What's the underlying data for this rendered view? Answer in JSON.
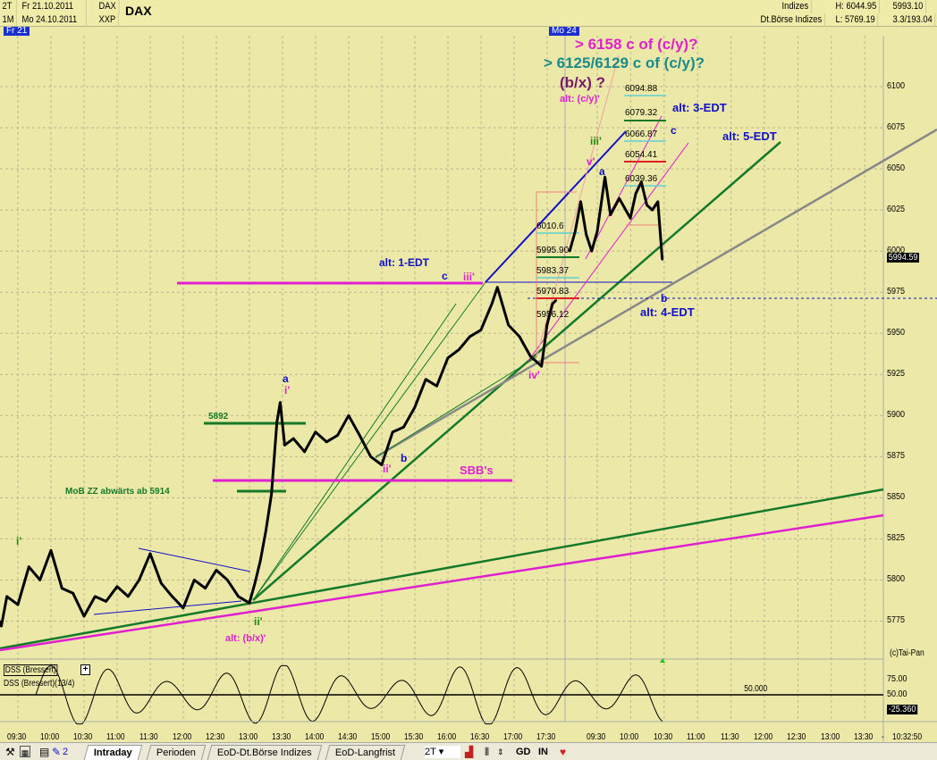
{
  "header": {
    "period1": "2T",
    "date1": "Fr 21.10.2011",
    "sym1": "DAX",
    "title": "DAX",
    "period2": "1M",
    "date2": "Mo 24.10.2011",
    "sym2": "XXP",
    "category": "Indizes",
    "exchange": "Dt.Börse Indizes",
    "high": "H: 6044.95",
    "low": "L: 5769.19",
    "last": "5993.10",
    "ratio": "3.3/193.04"
  },
  "day_tags": [
    "Fr 21",
    "Mo 24"
  ],
  "chart_data": {
    "type": "line",
    "title": "DAX",
    "price_axis": {
      "ticks": [
        6100,
        6075,
        6050,
        6025,
        6000,
        5975,
        5950,
        5925,
        5900,
        5875,
        5850,
        5825,
        5800,
        5775
      ],
      "current": "5994.59"
    },
    "time_ticks": [
      "09:30",
      "10:00",
      "10:30",
      "11:00",
      "11:30",
      "12:00",
      "12:30",
      "13:00",
      "13:30",
      "14:00",
      "14:30",
      "15:00",
      "15:30",
      "16:00",
      "16:30",
      "17:00",
      "17:30",
      "09:30",
      "10:00",
      "10:30",
      "11:00",
      "11:30",
      "12:00",
      "12:30",
      "13:00",
      "13:30",
      "-",
      "10:32:50"
    ],
    "series": [
      {
        "points": [
          [
            "1 09:05",
            5800
          ],
          [
            "1 09:10",
            5780
          ],
          [
            "1 09:15",
            5772
          ],
          [
            "1 09:20",
            5790
          ],
          [
            "1 09:30",
            5785
          ],
          [
            "1 09:40",
            5808
          ],
          [
            "1 09:50",
            5800
          ],
          [
            "1 10:00",
            5818
          ],
          [
            "1 10:10",
            5795
          ],
          [
            "1 10:20",
            5792
          ],
          [
            "1 10:30",
            5778
          ],
          [
            "1 10:40",
            5790
          ],
          [
            "1 10:50",
            5787
          ],
          [
            "1 11:00",
            5796
          ],
          [
            "1 11:10",
            5790
          ],
          [
            "1 11:20",
            5800
          ],
          [
            "1 11:30",
            5816
          ],
          [
            "1 11:40",
            5798
          ],
          [
            "1 11:50",
            5790
          ],
          [
            "1 12:00",
            5783
          ],
          [
            "1 12:10",
            5800
          ],
          [
            "1 12:20",
            5795
          ],
          [
            "1 12:30",
            5806
          ],
          [
            "1 12:40",
            5800
          ],
          [
            "1 12:50",
            5790
          ],
          [
            "1 13:00",
            5786
          ],
          [
            "1 13:05",
            5798
          ],
          [
            "1 13:10",
            5812
          ],
          [
            "1 13:15",
            5830
          ],
          [
            "1 13:20",
            5852
          ],
          [
            "1 13:25",
            5896
          ],
          [
            "1 13:28",
            5908
          ],
          [
            "1 13:32",
            5882
          ],
          [
            "1 13:40",
            5886
          ],
          [
            "1 13:50",
            5878
          ],
          [
            "1 14:00",
            5890
          ],
          [
            "1 14:10",
            5884
          ],
          [
            "1 14:20",
            5888
          ],
          [
            "1 14:30",
            5900
          ],
          [
            "1 14:40",
            5888
          ],
          [
            "1 14:50",
            5875
          ],
          [
            "1 15:00",
            5870
          ],
          [
            "1 15:10",
            5890
          ],
          [
            "1 15:20",
            5893
          ],
          [
            "1 15:30",
            5905
          ],
          [
            "1 15:40",
            5922
          ],
          [
            "1 15:50",
            5918
          ],
          [
            "1 16:00",
            5935
          ],
          [
            "1 16:10",
            5940
          ],
          [
            "1 16:20",
            5948
          ],
          [
            "1 16:30",
            5952
          ],
          [
            "1 16:40",
            5968
          ],
          [
            "1 16:45",
            5978
          ],
          [
            "1 16:55",
            5955
          ],
          [
            "1 17:05",
            5948
          ],
          [
            "1 17:15",
            5936
          ],
          [
            "1 17:25",
            5930
          ],
          [
            "1 17:30",
            5955
          ],
          [
            "1 17:35",
            5968
          ],
          [
            "1 17:38",
            5970
          ],
          [
            "2 09:05",
            6000
          ],
          [
            "2 09:10",
            6012
          ],
          [
            "2 09:15",
            6030
          ],
          [
            "2 09:20",
            6010
          ],
          [
            "2 09:25",
            6000
          ],
          [
            "2 09:30",
            6012
          ],
          [
            "2 09:37",
            6045
          ],
          [
            "2 09:42",
            6022
          ],
          [
            "2 09:50",
            6032
          ],
          [
            "2 10:00",
            6020
          ],
          [
            "2 10:05",
            6035
          ],
          [
            "2 10:10",
            6042
          ],
          [
            "2 10:15",
            6028
          ],
          [
            "2 10:20",
            6025
          ],
          [
            "2 10:25",
            6030
          ],
          [
            "2 10:29",
            5995
          ]
        ]
      }
    ],
    "levels": [
      "6094.88",
      "6079.32",
      "6066.87",
      "6054.41",
      "6039.36",
      "6010.6",
      "5995.90",
      "5983.37",
      "5970.83",
      "5956.12"
    ],
    "level_5892": "5892",
    "annotations": {
      "t1": "> 6158 c of (c/y)?",
      "t2": "> 6125/6129 c of (c/y)?",
      "t3": "(b/x) ?",
      "alt_cy": "alt: (c/y)'",
      "alt3": "alt: 3-EDT",
      "alt5": "alt: 5-EDT",
      "c_top": "c",
      "iii_g": "iii'",
      "v": "v'",
      "a_top": "a",
      "alt1": "alt: 1-EDT",
      "c_mid": "c",
      "iii_m": "iii'",
      "b_right": "b",
      "alt4": "alt: 4-EDT",
      "iv": "iv'",
      "a_left": "a",
      "i_m": "i'",
      "b_mid": "b",
      "ii_m": "ii'",
      "sbb": "SBB's",
      "mob": "MoB ZZ abwärts ab 5914",
      "i_g": "i'",
      "ii_g": "ii'",
      "alt_bx": "alt: (b/x)'",
      "copyright": "(c)Tai-Pan"
    },
    "colors": {
      "background": "#ece9a8",
      "magenta": "#e020d0",
      "green": "#147a2a",
      "blue": "#1010c8",
      "teal": "#1a8a8a",
      "purple": "#7a1a6a",
      "gray": "#888888"
    }
  },
  "oscillator": {
    "name": "DSS (Bressert)",
    "label": "DSS (Bressert)(13/4)",
    "ticks": [
      "75.00",
      "50.00"
    ],
    "current": "-25.360",
    "level": "50.000"
  },
  "toolbar": {
    "tabs": [
      "Intraday",
      "Perioden",
      "EoD-Dt.Börse Indizes",
      "EoD-Langfrist"
    ],
    "active": "Intraday",
    "period": "2T",
    "gd": "GD",
    "in": "IN",
    "num": "2"
  }
}
